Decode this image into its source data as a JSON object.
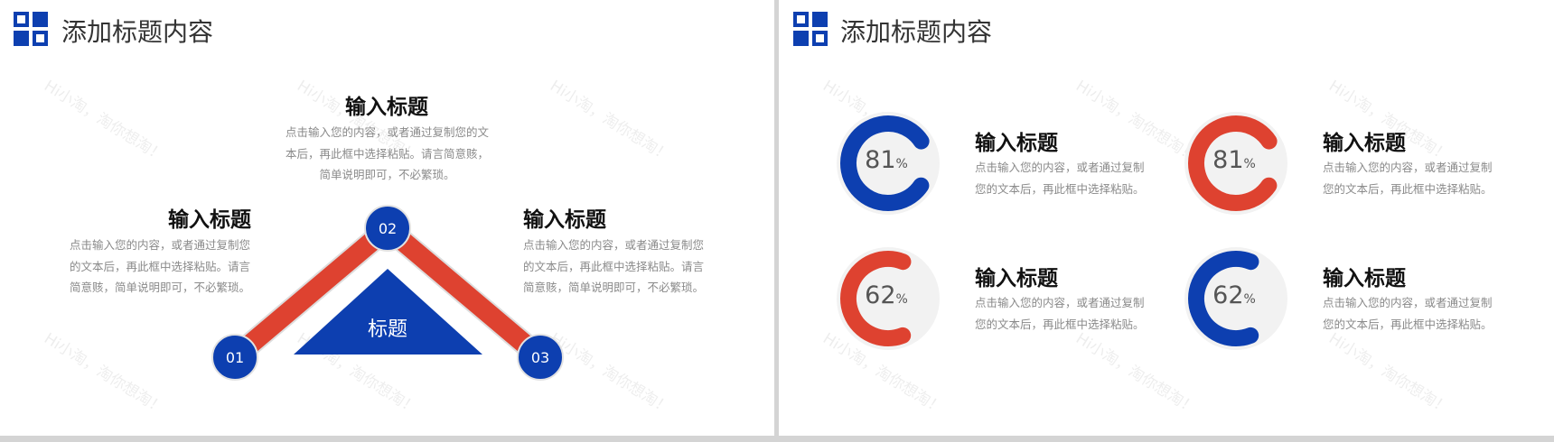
{
  "colors": {
    "blue": "#0d3fb0",
    "red": "#de4230",
    "gray": "#f2f2f2"
  },
  "watermark": "Hi小淘，淘你想淘！",
  "slide1": {
    "title": "添加标题内容",
    "logo_icon": "grid-squares-icon",
    "top": {
      "heading": "输入标题",
      "text": "点击输入您的内容，或者通过复制您的文本后，再此框中选择粘贴。请言简意赅，简单说明即可，不必繁琐。"
    },
    "left": {
      "heading": "输入标题",
      "text": "点击输入您的内容，或者通过复制您的文本后，再此框中选择粘贴。请言简意赅，简单说明即可，不必繁琐。"
    },
    "right": {
      "heading": "输入标题",
      "text": "点击输入您的内容，或者通过复制您的文本后，再此框中选择粘贴。请言简意赅，简单说明即可，不必繁琐。"
    },
    "nodes": [
      "01",
      "02",
      "03"
    ],
    "center_label": "标题"
  },
  "slide2": {
    "title": "添加标题内容",
    "logo_icon": "grid-squares-icon",
    "items": [
      {
        "percent": 81,
        "value": "81",
        "unit": "%",
        "color": "blue",
        "heading": "输入标题",
        "text": "点击输入您的内容，或者通过复制您的文本后，再此框中选择粘贴。"
      },
      {
        "percent": 81,
        "value": "81",
        "unit": "%",
        "color": "red",
        "heading": "输入标题",
        "text": "点击输入您的内容，或者通过复制您的文本后，再此框中选择粘贴。"
      },
      {
        "percent": 62,
        "value": "62",
        "unit": "%",
        "color": "red",
        "heading": "输入标题",
        "text": "点击输入您的内容，或者通过复制您的文本后，再此框中选择粘贴。"
      },
      {
        "percent": 62,
        "value": "62",
        "unit": "%",
        "color": "blue",
        "heading": "输入标题",
        "text": "点击输入您的内容，或者通过复制您的文本后，再此框中选择粘贴。"
      }
    ]
  }
}
